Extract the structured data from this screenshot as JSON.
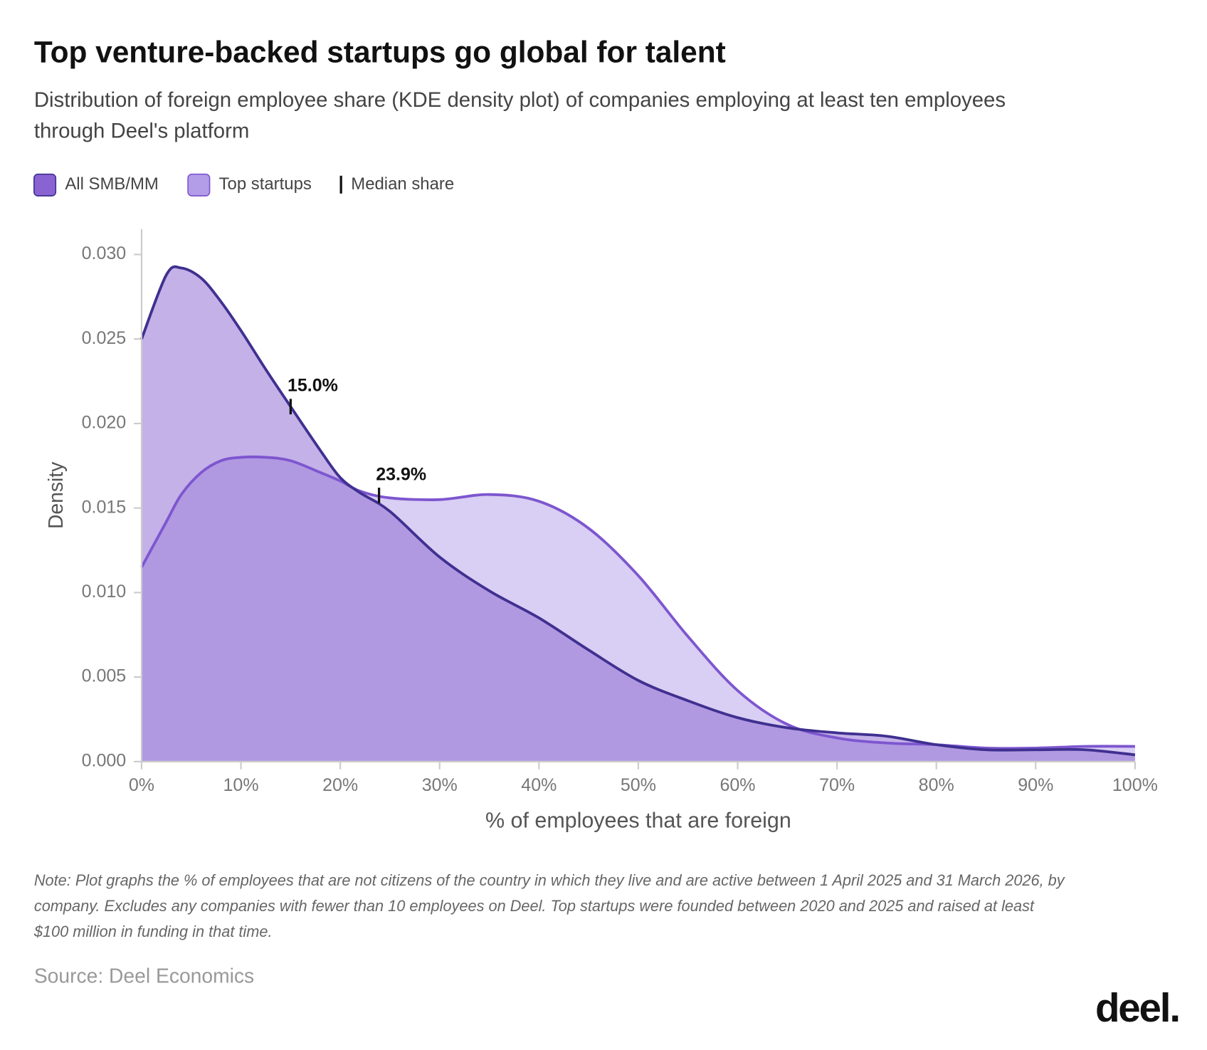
{
  "chart_data": {
    "type": "area",
    "title": "Top venture-backed startups go global for talent",
    "subtitle_lines": [
      "Distribution of foreign employee share (KDE density plot) of companies employing at least ten employees",
      "through Deel's platform"
    ],
    "x_label": "% of employees that are foreign",
    "y_label": "Density",
    "median_legend": "Median share",
    "x": [
      0,
      2.5,
      4,
      6,
      8,
      10,
      12.5,
      15,
      18,
      20,
      22,
      25,
      30,
      35,
      40,
      45,
      50,
      55,
      60,
      65,
      70,
      75,
      80,
      85,
      90,
      95,
      100
    ],
    "series": [
      {
        "name": "All SMB/MM",
        "color": "#8a63d2",
        "line_color": "#3f3090",
        "values": [
          0.025,
          0.0288,
          0.0292,
          0.0286,
          0.0272,
          0.0255,
          0.0232,
          0.021,
          0.0184,
          0.0168,
          0.0159,
          0.0148,
          0.0121,
          0.0101,
          0.0085,
          0.0066,
          0.0048,
          0.0036,
          0.0026,
          0.002,
          0.0017,
          0.0015,
          0.001,
          0.0007,
          0.0007,
          0.0007,
          0.0004
        ],
        "median": 15.0,
        "median_label": "15.0%"
      },
      {
        "name": "Top startups",
        "color": "#b39de8",
        "line_color": "#7d56cf",
        "values": [
          0.0115,
          0.0142,
          0.0158,
          0.0171,
          0.0178,
          0.018,
          0.018,
          0.0178,
          0.0171,
          0.0166,
          0.016,
          0.0156,
          0.0155,
          0.0158,
          0.0154,
          0.0138,
          0.011,
          0.0074,
          0.0042,
          0.0022,
          0.0014,
          0.0011,
          0.001,
          0.0008,
          0.0008,
          0.0009,
          0.0009
        ],
        "median": 23.9,
        "median_label": "23.9%"
      }
    ],
    "xlim": [
      0,
      100
    ],
    "xticks": [
      {
        "value": 0,
        "label": "0%"
      },
      {
        "value": 10,
        "label": "10%"
      },
      {
        "value": 20,
        "label": "20%"
      },
      {
        "value": 30,
        "label": "30%"
      },
      {
        "value": 40,
        "label": "40%"
      },
      {
        "value": 50,
        "label": "50%"
      },
      {
        "value": 60,
        "label": "60%"
      },
      {
        "value": 70,
        "label": "70%"
      },
      {
        "value": 80,
        "label": "80%"
      },
      {
        "value": 90,
        "label": "90%"
      },
      {
        "value": 100,
        "label": "100%"
      }
    ],
    "ylim": [
      0,
      0.0315
    ],
    "yticks": [
      {
        "value": 0,
        "label": "0.000"
      },
      {
        "value": 0.005,
        "label": "0.005"
      },
      {
        "value": 0.01,
        "label": "0.010"
      },
      {
        "value": 0.015,
        "label": "0.015"
      },
      {
        "value": 0.02,
        "label": "0.020"
      },
      {
        "value": 0.025,
        "label": "0.025"
      },
      {
        "value": 0.03,
        "label": "0.030"
      }
    ],
    "note_lines": [
      "Note: Plot graphs the % of employees that are not citizens of the country in which they live and are active between 1 April 2025 and 31 March 2026, by",
      "company. Excludes any companies with fewer than 10 employees on Deel. Top startups were founded between 2020 and 2025 and raised at least",
      "$100 million in funding in that time."
    ],
    "source": "Source: Deel Economics",
    "logo": "deel."
  }
}
